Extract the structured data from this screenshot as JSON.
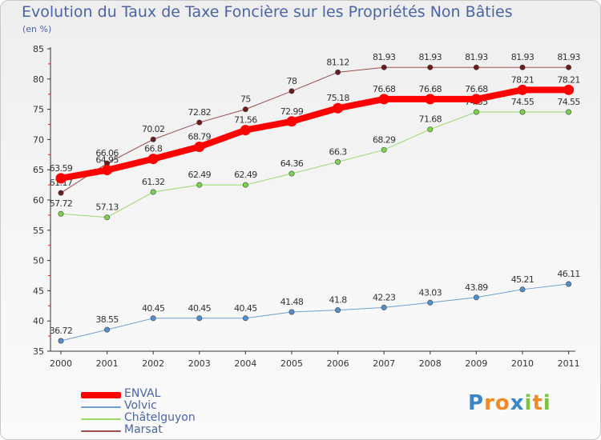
{
  "header": {
    "title": "Evolution du Taux de Taxe Foncière sur les Propriétés Non Bâties",
    "subtitle": "(en %)"
  },
  "chart_data": {
    "type": "line",
    "title": "Evolution du Taux de Taxe Foncière sur les Propriétés Non Bâties",
    "ylabel": "(en %)",
    "xlabel": "",
    "ylim": [
      35,
      85
    ],
    "y_ticks": [
      "35",
      "40",
      "45",
      "50",
      "55",
      "60",
      "65",
      "70",
      "75",
      "80",
      "85"
    ],
    "categories": [
      "2000",
      "2001",
      "2002",
      "2003",
      "2004",
      "2005",
      "2006",
      "2007",
      "2008",
      "2009",
      "2010",
      "2011"
    ],
    "grid": false,
    "legend_position": "bottom-left",
    "series": [
      {
        "name": "Marsat",
        "color": "#9b4e50",
        "marker_color": "#6b1a1e",
        "line_width": 1,
        "values": [
          61.17,
          66.06,
          70.02,
          72.82,
          75,
          78,
          81.12,
          81.93,
          81.93,
          81.93,
          81.93,
          81.93
        ],
        "labels": [
          "61.17",
          "66.06",
          "70.02",
          "72.82",
          "75",
          "78",
          "81.12",
          "81.93",
          "81.93",
          "81.93",
          "81.93",
          "81.93"
        ]
      },
      {
        "name": "Châtelguyon",
        "color": "#99d96b",
        "marker_color": "#7ad34a",
        "line_width": 1,
        "values": [
          57.72,
          57.13,
          61.32,
          62.49,
          62.49,
          64.36,
          66.3,
          68.29,
          71.68,
          74.55,
          74.55,
          74.55
        ],
        "labels": [
          "57.72",
          "57.13",
          "61.32",
          "62.49",
          "62.49",
          "64.36",
          "66.3",
          "68.29",
          "71.68",
          "74.55",
          "74.55",
          "74.55"
        ]
      },
      {
        "name": "Volvic",
        "color": "#6e9ed0",
        "marker_color": "#4f8fd0",
        "line_width": 1,
        "values": [
          36.72,
          38.55,
          40.45,
          40.45,
          40.45,
          41.48,
          41.8,
          42.23,
          43.03,
          43.89,
          45.21,
          46.11
        ],
        "labels": [
          "36.72",
          "38.55",
          "40.45",
          "40.45",
          "40.45",
          "41.48",
          "41.8",
          "42.23",
          "43.03",
          "43.89",
          "45.21",
          "46.11"
        ]
      },
      {
        "name": "ENVAL",
        "color": "#ff0000",
        "marker_color": "#ff0000",
        "line_width": 8,
        "values": [
          63.59,
          64.95,
          66.8,
          68.79,
          71.56,
          72.99,
          75.18,
          76.68,
          76.68,
          76.68,
          78.21,
          78.21
        ],
        "labels": [
          "63.59",
          "64.95",
          "66.8",
          "68.79",
          "71.56",
          "72.99",
          "75.18",
          "76.68",
          "76.68",
          "76.68",
          "78.21",
          "78.21"
        ]
      }
    ]
  },
  "legend": {
    "items": [
      {
        "label": "ENVAL",
        "color": "#ff0000",
        "thickness": 8
      },
      {
        "label": "Volvic",
        "color": "#6e9ed0",
        "thickness": 2
      },
      {
        "label": "Châtelguyon",
        "color": "#99d96b",
        "thickness": 2
      },
      {
        "label": "Marsat",
        "color": "#9b4e50",
        "thickness": 2
      }
    ]
  },
  "logo": {
    "letters": [
      {
        "ch": "P",
        "color": "#3b86c6"
      },
      {
        "ch": "r",
        "color": "#ef8a24"
      },
      {
        "ch": "o",
        "color": "#ef8a24"
      },
      {
        "ch": "x",
        "color": "#3b86c6"
      },
      {
        "ch": "i",
        "color": "#7cc242"
      },
      {
        "ch": "t",
        "color": "#ef8a24"
      },
      {
        "ch": "i",
        "color": "#7cc242"
      }
    ]
  }
}
